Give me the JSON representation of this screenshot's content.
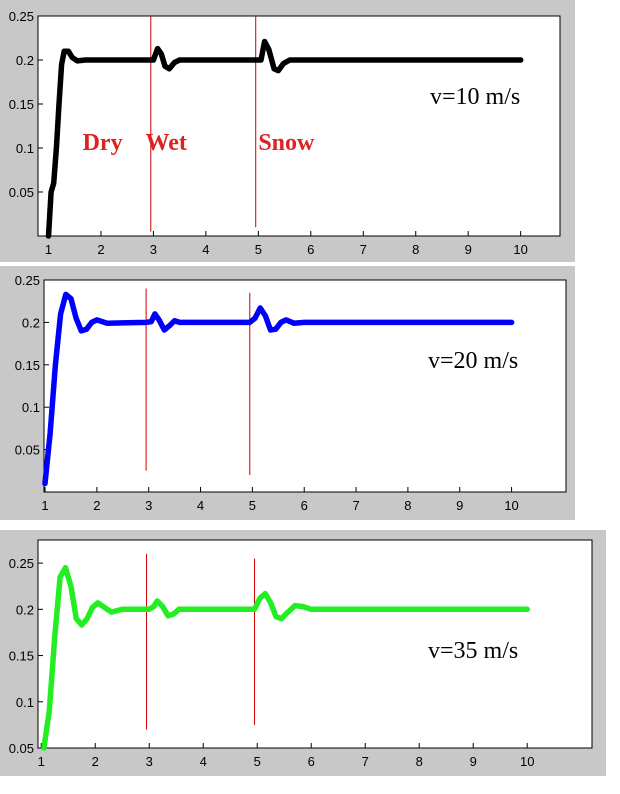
{
  "colors": {
    "panel_bg": "#c8c8c8",
    "marker_line": "#cc0000",
    "region_label": "#dd2222"
  },
  "chart_data": [
    {
      "type": "line",
      "xlim": [
        0.8,
        10.75
      ],
      "ylim": [
        0,
        0.25
      ],
      "xticks": [
        "1",
        "2",
        "3",
        "4",
        "5",
        "6",
        "7",
        "8",
        "9",
        "10"
      ],
      "yticks": [
        "0.05",
        "0.1",
        "0.15",
        "0.2",
        "0.25"
      ],
      "grid": false,
      "annotation": "v=10 m/s",
      "region_labels": [
        {
          "text": "Dry",
          "x": 1.65,
          "y": 0.098
        },
        {
          "text": "Wet",
          "x": 2.85,
          "y": 0.098
        },
        {
          "text": "Snow",
          "x": 5.0,
          "y": 0.098
        }
      ],
      "markers": [
        {
          "x": 2.95,
          "y0": 0.005,
          "y1": 0.25
        },
        {
          "x": 4.95,
          "y0": 0.01,
          "y1": 0.25
        }
      ],
      "series": [
        {
          "color": "#000000",
          "points": [
            [
              1.0,
              0.0
            ],
            [
              1.05,
              0.05
            ],
            [
              1.1,
              0.06
            ],
            [
              1.15,
              0.1
            ],
            [
              1.2,
              0.15
            ],
            [
              1.25,
              0.195
            ],
            [
              1.3,
              0.21
            ],
            [
              1.38,
              0.21
            ],
            [
              1.45,
              0.203
            ],
            [
              1.55,
              0.199
            ],
            [
              1.7,
              0.2
            ],
            [
              2.9,
              0.2
            ],
            [
              3.0,
              0.2
            ],
            [
              3.08,
              0.213
            ],
            [
              3.15,
              0.207
            ],
            [
              3.22,
              0.193
            ],
            [
              3.3,
              0.19
            ],
            [
              3.4,
              0.197
            ],
            [
              3.5,
              0.2
            ],
            [
              4.95,
              0.2
            ],
            [
              5.05,
              0.2
            ],
            [
              5.12,
              0.221
            ],
            [
              5.2,
              0.212
            ],
            [
              5.3,
              0.19
            ],
            [
              5.38,
              0.188
            ],
            [
              5.48,
              0.196
            ],
            [
              5.6,
              0.2
            ],
            [
              10.0,
              0.2
            ]
          ]
        }
      ]
    },
    {
      "type": "line",
      "xlim": [
        0.98,
        11.05
      ],
      "ylim": [
        0,
        0.25
      ],
      "xticks": [
        "1",
        "2",
        "3",
        "4",
        "5",
        "6",
        "7",
        "8",
        "9",
        "10"
      ],
      "yticks": [
        "0.05",
        "0.1",
        "0.15",
        "0.2",
        "0.25"
      ],
      "grid": false,
      "annotation": "v=20 m/s",
      "region_labels": [],
      "markers": [
        {
          "x": 2.95,
          "y0": 0.025,
          "y1": 0.24
        },
        {
          "x": 4.95,
          "y0": 0.02,
          "y1": 0.235
        }
      ],
      "series": [
        {
          "color": "#0000ff",
          "points": [
            [
              1.0,
              0.01
            ],
            [
              1.1,
              0.07
            ],
            [
              1.2,
              0.15
            ],
            [
              1.3,
              0.21
            ],
            [
              1.4,
              0.233
            ],
            [
              1.5,
              0.228
            ],
            [
              1.6,
              0.205
            ],
            [
              1.7,
              0.19
            ],
            [
              1.8,
              0.192
            ],
            [
              1.9,
              0.2
            ],
            [
              2.0,
              0.203
            ],
            [
              2.1,
              0.201
            ],
            [
              2.2,
              0.199
            ],
            [
              2.95,
              0.2
            ],
            [
              3.05,
              0.201
            ],
            [
              3.12,
              0.21
            ],
            [
              3.2,
              0.203
            ],
            [
              3.3,
              0.191
            ],
            [
              3.4,
              0.196
            ],
            [
              3.5,
              0.202
            ],
            [
              3.6,
              0.2
            ],
            [
              4.95,
              0.2
            ],
            [
              5.05,
              0.205
            ],
            [
              5.15,
              0.217
            ],
            [
              5.25,
              0.208
            ],
            [
              5.35,
              0.191
            ],
            [
              5.45,
              0.192
            ],
            [
              5.55,
              0.2
            ],
            [
              5.65,
              0.203
            ],
            [
              5.8,
              0.199
            ],
            [
              6.0,
              0.2
            ],
            [
              10.0,
              0.2
            ]
          ]
        }
      ]
    },
    {
      "type": "line",
      "xlim": [
        0.94,
        11.2
      ],
      "ylim": [
        0.05,
        0.275
      ],
      "xticks": [
        "1",
        "2",
        "3",
        "4",
        "5",
        "6",
        "7",
        "8",
        "9",
        "10"
      ],
      "yticks": [
        "0.05",
        "0.1",
        "0.15",
        "0.2",
        "0.25"
      ],
      "grid": false,
      "annotation": "v=35 m/s",
      "region_labels": [],
      "markers": [
        {
          "x": 2.95,
          "y0": 0.07,
          "y1": 0.26
        },
        {
          "x": 4.95,
          "y0": 0.075,
          "y1": 0.255
        }
      ],
      "series": [
        {
          "color": "#22ee22",
          "points": [
            [
              1.05,
              0.05
            ],
            [
              1.15,
              0.09
            ],
            [
              1.25,
              0.17
            ],
            [
              1.35,
              0.235
            ],
            [
              1.45,
              0.245
            ],
            [
              1.55,
              0.225
            ],
            [
              1.65,
              0.19
            ],
            [
              1.75,
              0.183
            ],
            [
              1.85,
              0.19
            ],
            [
              1.95,
              0.202
            ],
            [
              2.05,
              0.207
            ],
            [
              2.15,
              0.203
            ],
            [
              2.3,
              0.197
            ],
            [
              2.5,
              0.2
            ],
            [
              3.0,
              0.2
            ],
            [
              3.08,
              0.203
            ],
            [
              3.15,
              0.209
            ],
            [
              3.25,
              0.203
            ],
            [
              3.35,
              0.193
            ],
            [
              3.45,
              0.195
            ],
            [
              3.55,
              0.2
            ],
            [
              3.7,
              0.2
            ],
            [
              4.95,
              0.2
            ],
            [
              5.05,
              0.212
            ],
            [
              5.15,
              0.217
            ],
            [
              5.25,
              0.207
            ],
            [
              5.35,
              0.192
            ],
            [
              5.45,
              0.19
            ],
            [
              5.55,
              0.196
            ],
            [
              5.7,
              0.204
            ],
            [
              5.85,
              0.203
            ],
            [
              6.0,
              0.2
            ],
            [
              7.0,
              0.2
            ],
            [
              10.0,
              0.2
            ]
          ]
        }
      ]
    }
  ]
}
